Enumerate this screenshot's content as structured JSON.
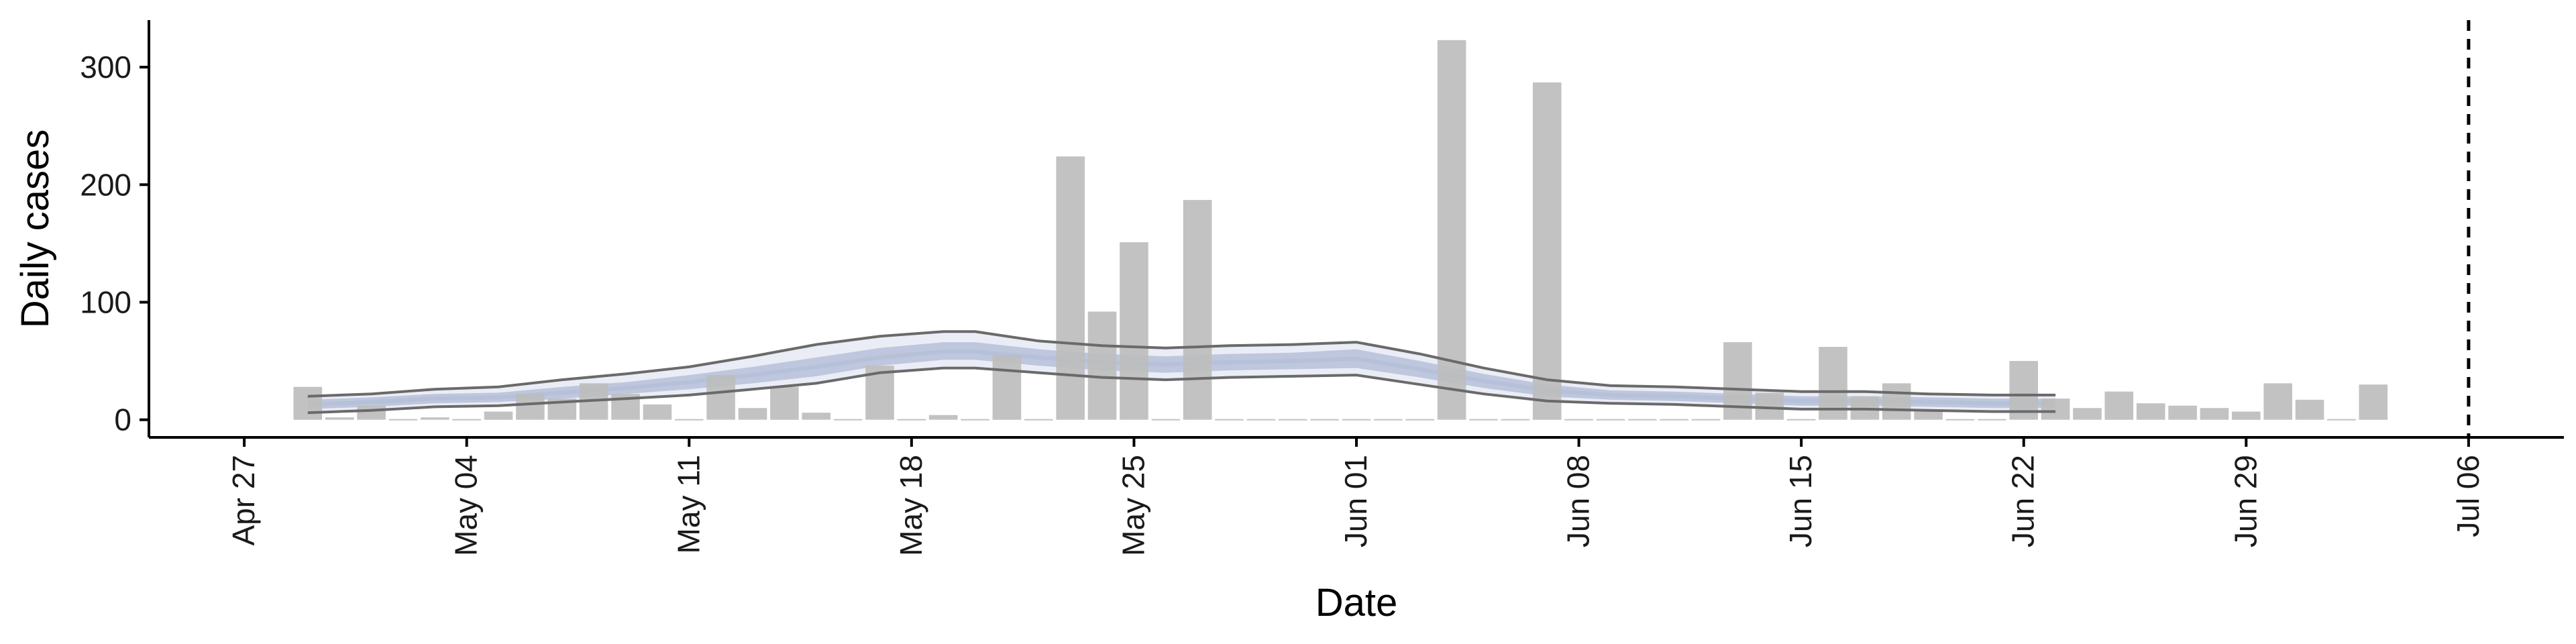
{
  "chart_data": {
    "type": "bar",
    "title": "",
    "xlabel": "Date",
    "ylabel": "Daily cases",
    "ylim": [
      -15,
      340
    ],
    "yticks": [
      0,
      100,
      200,
      300
    ],
    "x_range": [
      "2020-04-24",
      "2020-07-09"
    ],
    "x_ticks": [
      {
        "date": "2020-04-27",
        "label": "Apr 27"
      },
      {
        "date": "2020-05-04",
        "label": "May 04"
      },
      {
        "date": "2020-05-11",
        "label": "May 11"
      },
      {
        "date": "2020-05-18",
        "label": "May 18"
      },
      {
        "date": "2020-05-25",
        "label": "May 25"
      },
      {
        "date": "2020-06-01",
        "label": "Jun 01"
      },
      {
        "date": "2020-06-08",
        "label": "Jun 08"
      },
      {
        "date": "2020-06-15",
        "label": "Jun 15"
      },
      {
        "date": "2020-06-22",
        "label": "Jun 22"
      },
      {
        "date": "2020-06-29",
        "label": "Jun 29"
      },
      {
        "date": "2020-07-06",
        "label": "Jul 06"
      }
    ],
    "vline": "2020-07-06",
    "grid": false,
    "legend": "none",
    "bars": {
      "dates": [
        "2020-04-29",
        "2020-04-30",
        "2020-05-01",
        "2020-05-02",
        "2020-05-03",
        "2020-05-04",
        "2020-05-05",
        "2020-05-06",
        "2020-05-07",
        "2020-05-08",
        "2020-05-09",
        "2020-05-10",
        "2020-05-11",
        "2020-05-12",
        "2020-05-13",
        "2020-05-14",
        "2020-05-15",
        "2020-05-16",
        "2020-05-17",
        "2020-05-18",
        "2020-05-19",
        "2020-05-20",
        "2020-05-21",
        "2020-05-22",
        "2020-05-23",
        "2020-05-24",
        "2020-05-25",
        "2020-05-26",
        "2020-05-27",
        "2020-05-28",
        "2020-05-29",
        "2020-05-30",
        "2020-05-31",
        "2020-06-01",
        "2020-06-02",
        "2020-06-03",
        "2020-06-04",
        "2020-06-05",
        "2020-06-06",
        "2020-06-07",
        "2020-06-08",
        "2020-06-09",
        "2020-06-10",
        "2020-06-11",
        "2020-06-12",
        "2020-06-13",
        "2020-06-14",
        "2020-06-15",
        "2020-06-16",
        "2020-06-17",
        "2020-06-18",
        "2020-06-19",
        "2020-06-20",
        "2020-06-21",
        "2020-06-22",
        "2020-06-23",
        "2020-06-24",
        "2020-06-25",
        "2020-06-26",
        "2020-06-27",
        "2020-06-28",
        "2020-06-29",
        "2020-06-30",
        "2020-07-01",
        "2020-07-02",
        "2020-07-03"
      ],
      "values": [
        28,
        2,
        12,
        0,
        2,
        0,
        7,
        22,
        18,
        31,
        22,
        13,
        0,
        38,
        10,
        28,
        6,
        0,
        46,
        0,
        4,
        0,
        55,
        0,
        224,
        92,
        151,
        0,
        187,
        0,
        0,
        0,
        0,
        0,
        0,
        0,
        323,
        0,
        0,
        287,
        0,
        0,
        0,
        0,
        0,
        66,
        23,
        0,
        62,
        20,
        31,
        8,
        0,
        0,
        50,
        18,
        10,
        24,
        14,
        12,
        10,
        7,
        31,
        17,
        0,
        30
      ],
      "color": "#bdbdbd"
    },
    "series": [
      {
        "dates": [
          "2020-04-29",
          "2020-05-01",
          "2020-05-03",
          "2020-05-05",
          "2020-05-07",
          "2020-05-09",
          "2020-05-11",
          "2020-05-13",
          "2020-05-15",
          "2020-05-17",
          "2020-05-19",
          "2020-05-20",
          "2020-05-22",
          "2020-05-24",
          "2020-05-26",
          "2020-05-28",
          "2020-05-30",
          "2020-06-01",
          "2020-06-03",
          "2020-06-05",
          "2020-06-07",
          "2020-06-09",
          "2020-06-11",
          "2020-06-13",
          "2020-06-15",
          "2020-06-17",
          "2020-06-19",
          "2020-06-21",
          "2020-06-23"
        ],
        "median": [
          13,
          15,
          18,
          19,
          23,
          27,
          32,
          38,
          45,
          53,
          58,
          58,
          53,
          49,
          47,
          49,
          50,
          52,
          43,
          33,
          25,
          21,
          20,
          18,
          16,
          16,
          15,
          14,
          14
        ],
        "inner_lower": [
          9,
          11,
          14,
          15,
          18,
          22,
          26,
          31,
          37,
          46,
          51,
          51,
          46,
          42,
          40,
          42,
          43,
          44,
          36,
          27,
          20,
          17,
          16,
          14,
          12,
          12,
          11,
          10,
          10
        ],
        "inner_upper": [
          17,
          19,
          22,
          23,
          28,
          32,
          38,
          45,
          53,
          61,
          66,
          66,
          60,
          56,
          54,
          56,
          57,
          60,
          50,
          39,
          30,
          25,
          24,
          22,
          20,
          20,
          19,
          18,
          18
        ],
        "outer_lower": [
          6,
          8,
          11,
          12,
          15,
          18,
          21,
          26,
          31,
          40,
          44,
          44,
          40,
          36,
          34,
          36,
          37,
          38,
          30,
          22,
          16,
          14,
          13,
          11,
          9,
          9,
          8,
          7,
          7
        ],
        "outer_upper": [
          20,
          22,
          26,
          28,
          34,
          39,
          45,
          54,
          64,
          71,
          75,
          75,
          67,
          63,
          61,
          63,
          64,
          66,
          56,
          44,
          34,
          29,
          28,
          26,
          24,
          24,
          22,
          21,
          21
        ],
        "band_color": "#b6c0d8",
        "outer_band_color": "#e3e7f1",
        "line_color": "#6a6a6a"
      }
    ]
  }
}
